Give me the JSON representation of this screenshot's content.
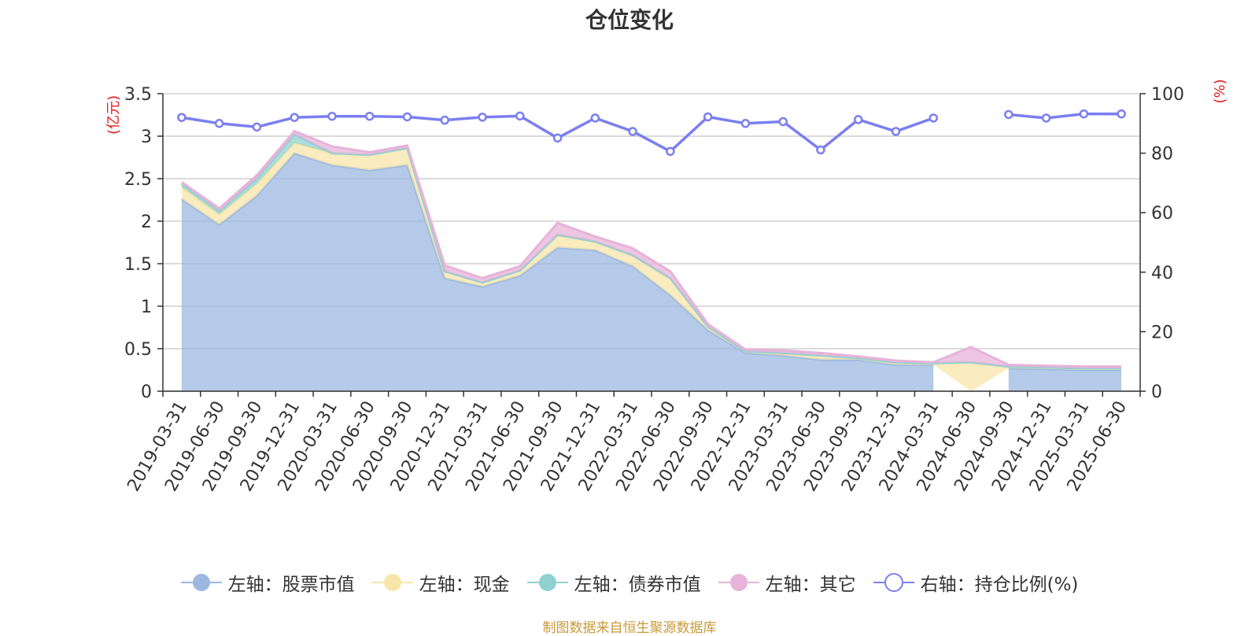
{
  "chart_data": {
    "type": "area",
    "title": "仓位变化",
    "source": "制图数据来自恒生聚源数据库",
    "left_axis": {
      "label": "(亿元)",
      "ylim": [
        0,
        3.5
      ],
      "ticks": [
        "0",
        "0.5",
        "1",
        "1.5",
        "2",
        "2.5",
        "3",
        "3.5"
      ]
    },
    "right_axis": {
      "label": "(%)",
      "ylim": [
        0,
        100
      ],
      "ticks": [
        "0",
        "20",
        "40",
        "60",
        "80",
        "100"
      ]
    },
    "categories": [
      "2019-03-31",
      "2019-06-30",
      "2019-09-30",
      "2019-12-31",
      "2020-03-31",
      "2020-06-30",
      "2020-09-30",
      "2020-12-31",
      "2021-03-31",
      "2021-06-30",
      "2021-09-30",
      "2021-12-31",
      "2022-03-31",
      "2022-06-30",
      "2022-09-30",
      "2022-12-31",
      "2023-03-31",
      "2023-06-30",
      "2023-09-30",
      "2023-12-31",
      "2024-03-31",
      "2024-06-30",
      "2024-09-30",
      "2024-12-31",
      "2025-03-31",
      "2025-06-30"
    ],
    "series": [
      {
        "name": "左轴：股票市值",
        "axis": "left",
        "type": "area",
        "color": "#9cb8e0",
        "values": [
          2.26,
          1.96,
          2.3,
          2.8,
          2.66,
          2.6,
          2.66,
          1.33,
          1.23,
          1.36,
          1.69,
          1.66,
          1.47,
          1.13,
          0.72,
          0.45,
          0.42,
          0.37,
          0.37,
          0.31,
          0.31,
          null,
          0.27,
          0.26,
          0.25,
          0.25
        ]
      },
      {
        "name": "左轴：现金",
        "axis": "left",
        "type": "area",
        "color": "#f8e6a8",
        "values": [
          0.14,
          0.12,
          0.14,
          0.12,
          0.14,
          0.18,
          0.2,
          0.08,
          0.05,
          0.06,
          0.15,
          0.1,
          0.13,
          0.2,
          0.04,
          0.02,
          0.03,
          0.05,
          0.02,
          0.03,
          0.02,
          0.34,
          0.02,
          0.02,
          0.02,
          0.02
        ]
      },
      {
        "name": "左轴：债券市值",
        "axis": "left",
        "type": "area",
        "color": "#8fd1d1",
        "values": [
          0.04,
          0.04,
          0.06,
          0.1,
          0.0,
          0.0,
          0.0,
          0.0,
          0.0,
          0.0,
          0.0,
          0.0,
          0.0,
          0.0,
          0.0,
          0.0,
          0.0,
          0.0,
          0.0,
          0.0,
          0.0,
          0.0,
          0.0,
          0.0,
          0.0,
          0.0
        ]
      },
      {
        "name": "左轴：其它",
        "axis": "left",
        "type": "area",
        "color": "#e7b3d9",
        "values": [
          0.02,
          0.03,
          0.04,
          0.04,
          0.08,
          0.03,
          0.03,
          0.07,
          0.05,
          0.05,
          0.14,
          0.06,
          0.08,
          0.08,
          0.03,
          0.02,
          0.03,
          0.03,
          0.02,
          0.02,
          0.01,
          0.18,
          0.02,
          0.02,
          0.02,
          0.02
        ]
      },
      {
        "name": "右轴：持仓比例(%)",
        "axis": "right",
        "type": "line",
        "color": "#7a7ff0",
        "values": [
          92,
          90,
          88.8,
          92,
          92.4,
          92.4,
          92.2,
          91.1,
          92.1,
          92.5,
          85.1,
          91.8,
          87.3,
          80.6,
          92.2,
          90,
          90.6,
          81.1,
          91.3,
          87.3,
          91.8,
          null,
          93,
          91.8,
          93.2,
          93.2
        ]
      }
    ],
    "legend": [
      "左轴：股票市值",
      "左轴：现金",
      "左轴：债券市值",
      "左轴：其它",
      "右轴：持仓比例(%)"
    ],
    "legend_position": "bottom",
    "grid": true
  }
}
